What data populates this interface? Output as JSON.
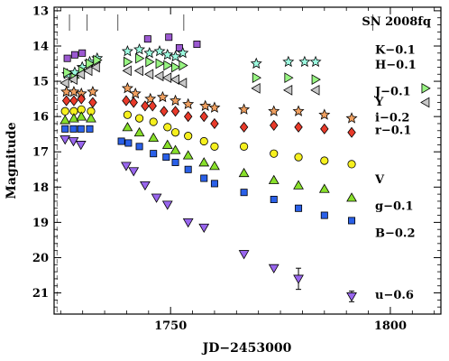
{
  "chart_data": {
    "type": "scatter",
    "title": "SN 2008fq",
    "xlabel": "JD−2453000",
    "ylabel": "Magnitude",
    "xlim": [
      1723.5,
      1811.5
    ],
    "ylim": [
      21.6,
      12.9
    ],
    "y_inverted": true,
    "grid": false,
    "x_ticks": [
      1750,
      1800
    ],
    "x_tick_labels": [
      "1750",
      "1800"
    ],
    "y_ticks": [
      13,
      14,
      15,
      16,
      17,
      18,
      19,
      20,
      21
    ],
    "y_tick_labels": [
      "13",
      "14",
      "15",
      "16",
      "17",
      "18",
      "19",
      "20",
      "21"
    ],
    "reference_line_x": 1724.2,
    "spectrum_epochs": [
      1727,
      1731,
      1738,
      1753,
      1796
    ],
    "series": [
      {
        "name": "K−0.1",
        "marker": "square",
        "color": "#9b59d0",
        "label_y": 14.1,
        "x": [
          1726.5,
          1728.2,
          1729.9,
          1744.8,
          1749.6,
          1752.0,
          1756.0
        ],
        "y": [
          14.35,
          14.25,
          14.2,
          13.8,
          13.75,
          14.05,
          13.95
        ]
      },
      {
        "name": "H−0.1",
        "marker": "star",
        "color": "#9dfae0",
        "label_y": 14.52,
        "x": [
          1726.5,
          1728.2,
          1729.9,
          1731.6,
          1733.3,
          1740.2,
          1742.9,
          1745.2,
          1747.5,
          1749.3,
          1751.1,
          1752.8,
          1769.5,
          1776.8,
          1780.5,
          1783.0
        ],
        "y": [
          14.8,
          14.75,
          14.6,
          14.45,
          14.35,
          14.15,
          14.1,
          14.2,
          14.15,
          14.25,
          14.3,
          14.2,
          14.5,
          14.45,
          14.45,
          14.45
        ]
      },
      {
        "name": "J−0.1",
        "marker": "triangle-right",
        "color": "#98f582",
        "label_y": 15.28,
        "x": [
          1726.5,
          1728.2,
          1729.9,
          1731.6,
          1733.3,
          1740.2,
          1742.9,
          1745.2,
          1747.5,
          1749.3,
          1751.1,
          1752.8,
          1769.5,
          1776.8,
          1783.0,
          1808.0
        ],
        "y": [
          14.75,
          14.9,
          14.7,
          14.5,
          14.4,
          14.45,
          14.35,
          14.45,
          14.5,
          14.55,
          14.6,
          14.55,
          14.9,
          14.9,
          14.95,
          15.2
        ]
      },
      {
        "name": "Y",
        "marker": "triangle-left",
        "color": "#c8c8c8",
        "label_y": 15.58,
        "x": [
          1726.0,
          1727.9,
          1729.6,
          1731.3,
          1733.0,
          1740.2,
          1742.9,
          1745.2,
          1747.5,
          1749.3,
          1751.1,
          1752.8,
          1769.5,
          1776.8,
          1783.0,
          1808.0
        ],
        "y": [
          15.05,
          14.95,
          14.8,
          14.7,
          14.6,
          14.7,
          14.7,
          14.8,
          14.85,
          14.9,
          14.95,
          15.05,
          15.2,
          15.25,
          15.25,
          15.6
        ]
      },
      {
        "name": "i−0.2",
        "marker": "star",
        "color": "#f0a060",
        "label_y": 16.02,
        "x": [
          1726.3,
          1728.0,
          1729.7,
          1732.3,
          1740.2,
          1742.0,
          1745.4,
          1748.2,
          1751.1,
          1754.0,
          1757.9,
          1760.0,
          1766.7,
          1773.5,
          1779.1,
          1785.0,
          1791.2
        ],
        "y": [
          15.3,
          15.3,
          15.35,
          15.3,
          15.2,
          15.35,
          15.5,
          15.45,
          15.55,
          15.65,
          15.7,
          15.75,
          15.8,
          15.85,
          15.85,
          15.95,
          16.05
        ]
      },
      {
        "name": "r−0.1",
        "marker": "diamond",
        "color": "#e83a2a",
        "label_y": 16.38,
        "x": [
          1726.3,
          1728.0,
          1729.7,
          1732.3,
          1739.9,
          1741.6,
          1744.2,
          1745.9,
          1748.5,
          1751.1,
          1754.0,
          1757.6,
          1760.0,
          1766.7,
          1773.5,
          1779.1,
          1785.0,
          1791.2
        ],
        "y": [
          15.55,
          15.55,
          15.5,
          15.6,
          15.55,
          15.6,
          15.7,
          15.7,
          15.85,
          15.85,
          16.0,
          16.0,
          16.2,
          16.3,
          16.25,
          16.3,
          16.35,
          16.45
        ]
      },
      {
        "name": "V",
        "marker": "circle",
        "color": "#f6f01e",
        "label_y": 17.78,
        "x": [
          1726.0,
          1728.0,
          1729.7,
          1731.9,
          1740.2,
          1742.9,
          1746.1,
          1749.3,
          1751.1,
          1754.0,
          1757.6,
          1760.0,
          1766.7,
          1773.5,
          1779.1,
          1785.0,
          1791.2
        ],
        "y": [
          15.85,
          15.85,
          15.8,
          15.85,
          15.95,
          16.05,
          16.15,
          16.3,
          16.45,
          16.55,
          16.7,
          16.85,
          16.85,
          17.05,
          17.15,
          17.25,
          17.35
        ]
      },
      {
        "name": "g−0.1",
        "marker": "triangle-up",
        "color": "#88e02a",
        "label_y": 18.53,
        "x": [
          1726.0,
          1728.0,
          1729.7,
          1731.9,
          1740.2,
          1742.9,
          1746.1,
          1749.3,
          1751.1,
          1754.0,
          1757.6,
          1760.0,
          1766.7,
          1773.5,
          1779.1,
          1785.0,
          1791.2
        ],
        "y": [
          16.1,
          16.05,
          16.0,
          16.05,
          16.3,
          16.45,
          16.6,
          16.8,
          16.95,
          17.1,
          17.3,
          17.4,
          17.6,
          17.8,
          17.95,
          18.05,
          18.3
        ]
      },
      {
        "name": "B−0.2",
        "marker": "square",
        "color": "#2a60e8",
        "label_y": 19.3,
        "x": [
          1726.0,
          1727.9,
          1729.6,
          1731.6,
          1738.8,
          1740.4,
          1742.9,
          1746.1,
          1749.0,
          1751.1,
          1754.0,
          1757.6,
          1760.0,
          1766.7,
          1773.5,
          1779.1,
          1785.0,
          1791.2
        ],
        "y": [
          16.35,
          16.35,
          16.35,
          16.35,
          16.7,
          16.75,
          16.85,
          17.05,
          17.15,
          17.3,
          17.5,
          17.75,
          17.9,
          18.15,
          18.35,
          18.6,
          18.8,
          18.95
        ]
      },
      {
        "name": "u−0.6",
        "marker": "triangle-down",
        "color": "#9966ee",
        "label_y": 21.05,
        "x": [
          1726.0,
          1727.9,
          1729.6,
          1739.9,
          1741.6,
          1744.2,
          1746.8,
          1749.3,
          1754.0,
          1757.6,
          1766.7,
          1773.5,
          1779.1,
          1791.2
        ],
        "y": [
          16.65,
          16.7,
          16.8,
          17.4,
          17.55,
          17.95,
          18.3,
          18.5,
          19.0,
          19.15,
          19.9,
          20.3,
          20.6,
          21.1
        ],
        "yerr": [
          0,
          0,
          0,
          0,
          0,
          0,
          0,
          0,
          0,
          0,
          0,
          0,
          0.3,
          0.15
        ]
      }
    ]
  }
}
